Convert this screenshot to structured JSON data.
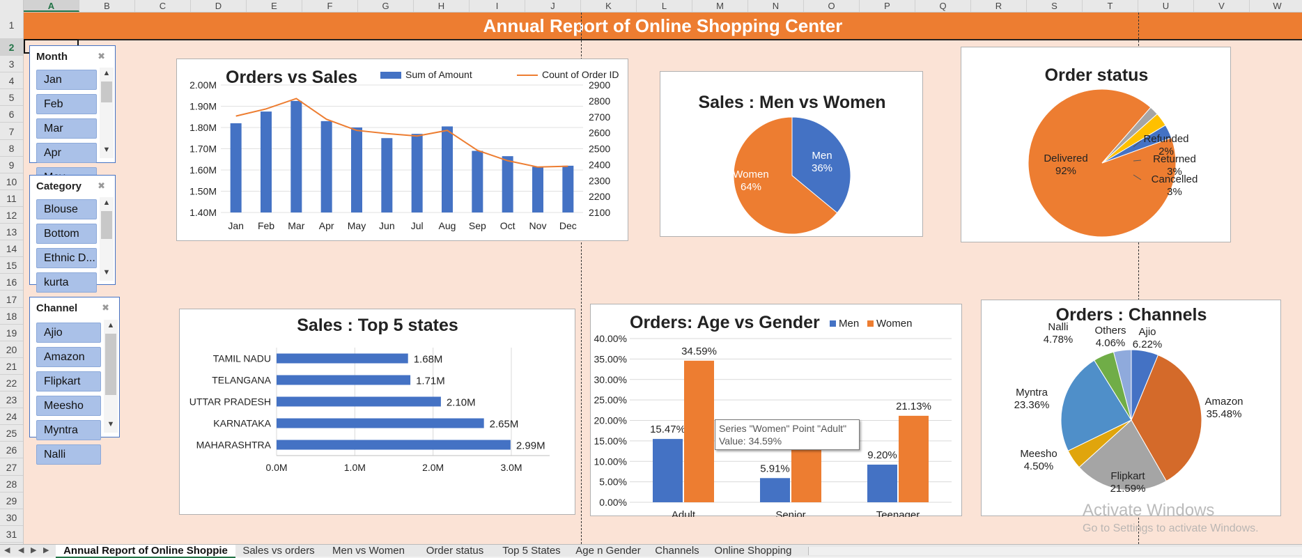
{
  "columns": [
    "A",
    "B",
    "C",
    "D",
    "E",
    "F",
    "G",
    "H",
    "I",
    "J",
    "K",
    "L",
    "M",
    "N",
    "O",
    "P",
    "Q",
    "R",
    "S",
    "T",
    "U",
    "V",
    "W"
  ],
  "rows": [
    "1",
    "2",
    "3",
    "4",
    "5",
    "6",
    "7",
    "8",
    "9",
    "10",
    "11",
    "12",
    "13",
    "14",
    "15",
    "16",
    "17",
    "18",
    "19",
    "20",
    "21",
    "22",
    "23",
    "24",
    "25",
    "26",
    "27",
    "28",
    "29",
    "30",
    "31"
  ],
  "title": "Annual Report of Online Shopping Center",
  "colors": {
    "orange": "#ed7d31",
    "blue": "#4472c4",
    "gray": "#a5a5a5",
    "gold": "#ffc000",
    "lightblue": "#5b9bd5",
    "green": "#70ad47",
    "banner": "#ed7d31",
    "sheet_bg": "#fbe3d6"
  },
  "slicers": {
    "month": {
      "title": "Month",
      "items": [
        "Jan",
        "Feb",
        "Mar",
        "Apr",
        "May"
      ],
      "clear_icon": "clear-filter-icon"
    },
    "category": {
      "title": "Category",
      "items": [
        "Blouse",
        "Bottom",
        "Ethnic D...",
        "kurta"
      ],
      "clear_icon": "clear-filter-icon"
    },
    "channel": {
      "title": "Channel",
      "items": [
        "Ajio",
        "Amazon",
        "Flipkart",
        "Meesho",
        "Myntra",
        "Nalli"
      ],
      "clear_icon": "clear-filter-icon"
    }
  },
  "chart_data": [
    {
      "type": "bar",
      "title": "Orders vs Sales",
      "categories": [
        "Jan",
        "Feb",
        "Mar",
        "Apr",
        "May",
        "Jun",
        "Jul",
        "Aug",
        "Sep",
        "Oct",
        "Nov",
        "Dec"
      ],
      "series": [
        {
          "name": "Sum of Amount",
          "type": "bar",
          "axis": "left",
          "values": [
            1.82,
            1.875,
            1.925,
            1.83,
            1.8,
            1.75,
            1.77,
            1.805,
            1.69,
            1.665,
            1.615,
            1.62
          ]
        },
        {
          "name": "Count of Order ID",
          "type": "line",
          "axis": "right",
          "values": [
            2705,
            2750,
            2815,
            2685,
            2615,
            2595,
            2580,
            2615,
            2490,
            2425,
            2385,
            2390
          ]
        }
      ],
      "ylim": [
        1.4,
        2.0
      ],
      "yticks": [
        "1.40M",
        "1.50M",
        "1.60M",
        "1.70M",
        "1.80M",
        "1.90M",
        "2.00M"
      ],
      "y2lim": [
        2100,
        2900
      ],
      "y2ticks": [
        "2100",
        "2200",
        "2300",
        "2400",
        "2500",
        "2600",
        "2700",
        "2800",
        "2900"
      ],
      "legend": "top-right"
    },
    {
      "type": "pie",
      "title": "Sales : Men vs Women",
      "labels": [
        "Men",
        "Women"
      ],
      "values": [
        36,
        64
      ],
      "pct_labels": [
        "36%",
        "64%"
      ]
    },
    {
      "type": "pie",
      "title": "Order status",
      "labels": [
        "Delivered",
        "Refunded",
        "Returned",
        "Cancelled"
      ],
      "values": [
        92,
        2,
        3,
        3
      ],
      "pct_labels": [
        "92%",
        "2%",
        "3%",
        "3%"
      ]
    },
    {
      "type": "bar",
      "orientation": "horizontal",
      "title": "Sales : Top 5 states",
      "categories": [
        "TAMIL NADU",
        "TELANGANA",
        "UTTAR PRADESH",
        "KARNATAKA",
        "MAHARASHTRA"
      ],
      "values": [
        1.68,
        1.71,
        2.1,
        2.65,
        2.99
      ],
      "value_labels": [
        "1.68M",
        "1.71M",
        "2.10M",
        "2.65M",
        "2.99M"
      ],
      "xlim": [
        0,
        3.0
      ],
      "xticks": [
        "0.0M",
        "1.0M",
        "2.0M",
        "3.0M"
      ]
    },
    {
      "type": "bar",
      "title": "Orders: Age vs Gender",
      "categories": [
        "Adult",
        "Senior",
        "Teenager"
      ],
      "series": [
        {
          "name": "Men",
          "values": [
            15.47,
            5.91,
            9.2
          ],
          "labels": [
            "15.47%",
            "5.91%",
            "9.20%"
          ]
        },
        {
          "name": "Women",
          "values": [
            34.59,
            13.5,
            21.13
          ],
          "labels": [
            "34.59%",
            "",
            "21.13%"
          ]
        }
      ],
      "ylim": [
        0,
        40
      ],
      "yticks": [
        "0.00%",
        "5.00%",
        "10.00%",
        "15.00%",
        "20.00%",
        "25.00%",
        "30.00%",
        "35.00%",
        "40.00%"
      ],
      "legend": "top-right"
    },
    {
      "type": "pie",
      "title": "Orders : Channels",
      "labels": [
        "Ajio",
        "Amazon",
        "Flipkart",
        "Meesho",
        "Myntra",
        "Nalli",
        "Others"
      ],
      "values": [
        6.22,
        35.48,
        21.59,
        4.5,
        23.36,
        4.78,
        4.06
      ],
      "pct_labels": [
        "6.22%",
        "35.48%",
        "21.59%",
        "4.50%",
        "23.36%",
        "4.78%",
        "4.06%"
      ]
    }
  ],
  "tooltip": {
    "line1": "Series \"Women\" Point \"Adult\"",
    "line2": "Value: 34.59%"
  },
  "watermark": {
    "line1": "Activate Windows",
    "line2": "Go to Settings to activate Windows."
  },
  "tabs": [
    "Annual Report of Online Shoppie",
    "Sales vs orders",
    "Men vs Women",
    "Order status",
    "Top 5 States",
    "Age n Gender",
    "Channels",
    "Online Shopping"
  ],
  "nav": {
    "first": "◀",
    "prev": "◀",
    "next": "▶",
    "last": "▶",
    "more": "..."
  }
}
